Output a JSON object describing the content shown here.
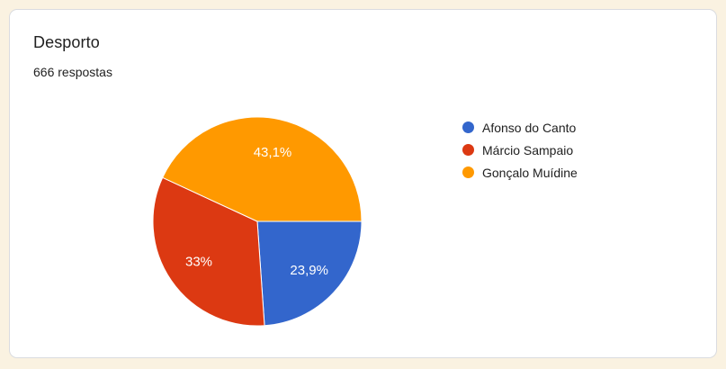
{
  "page": {
    "background_color": "#FAF2E1",
    "card_border_color": "#DADCE0"
  },
  "card": {
    "title": "Desporto",
    "response_count": "666 respostas"
  },
  "chart_data": {
    "type": "pie",
    "title": "Desporto",
    "subtitle": "666 respostas",
    "categories": [
      "Afonso do Canto",
      "Márcio Sampaio",
      "Gonçalo Muídine"
    ],
    "values": [
      23.9,
      33,
      43.1
    ],
    "slice_labels": [
      "23,9%",
      "33%",
      "43,1%"
    ],
    "colors": [
      "#3366CC",
      "#DC3912",
      "#FF9900"
    ],
    "label_color": "#FFFFFF",
    "start_angle_deg": 90,
    "direction": "clockwise",
    "legend_position": "right",
    "separator_color": "#FFFFFF"
  }
}
